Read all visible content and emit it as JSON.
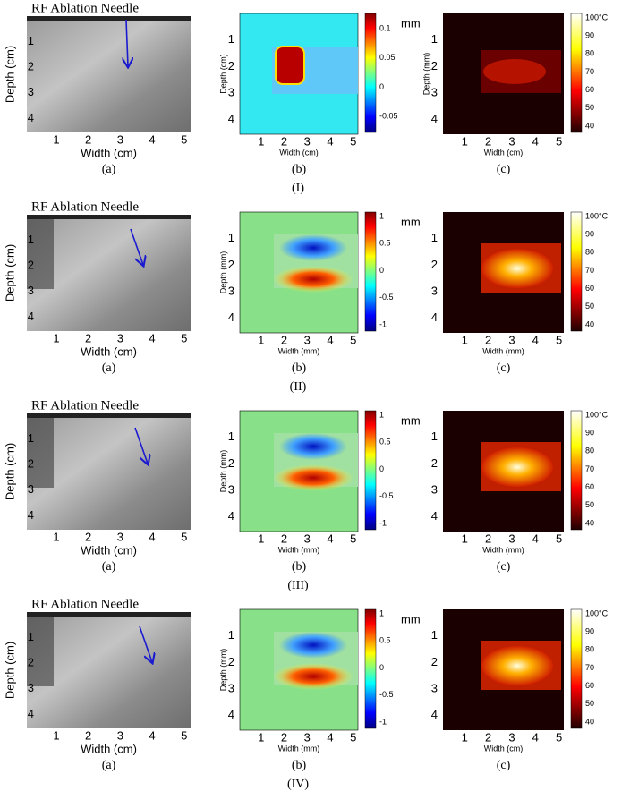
{
  "rows": [
    {
      "label": "(I)",
      "panels": [
        {
          "caption": "(a)",
          "title": "RF Ablation Needle",
          "xlabel": "Width (cm)",
          "ylabel": "Depth (cm)",
          "xticks": [
            "1",
            "2",
            "3",
            "4",
            "5"
          ],
          "yticks": [
            "1",
            "2",
            "3",
            "4"
          ]
        },
        {
          "caption": "(b)",
          "xlabel": "Width (cm)",
          "ylabel": "Depth (cm)",
          "xticks": [
            "1",
            "2",
            "3",
            "4",
            "5"
          ],
          "yticks": [
            "1",
            "2",
            "3",
            "4"
          ],
          "colorbar_ticks": [
            "0.1",
            "0.05",
            "0",
            "-0.05"
          ],
          "colorbar_unit": "mm"
        },
        {
          "caption": "(c)",
          "xlabel": "Width (cm)",
          "ylabel": "Depth (mm)",
          "xticks": [
            "1",
            "2",
            "3",
            "4",
            "5"
          ],
          "yticks": [
            "1",
            "2",
            "3",
            "4"
          ],
          "colorbar_ticks": [
            "100°C",
            "90",
            "80",
            "70",
            "60",
            "50",
            "40"
          ]
        }
      ]
    },
    {
      "label": "(II)",
      "panels": [
        {
          "caption": "(a)",
          "title": "RF Ablation Needle",
          "xlabel": "Width (cm)",
          "ylabel": "Depth (cm)",
          "xticks": [
            "1",
            "2",
            "3",
            "4",
            "5"
          ],
          "yticks": [
            "1",
            "2",
            "3",
            "4"
          ]
        },
        {
          "caption": "(b)",
          "xlabel": "Width (mm)",
          "ylabel": "Depth (mm)",
          "xticks": [
            "1",
            "2",
            "3",
            "4",
            "5"
          ],
          "yticks": [
            "1",
            "2",
            "3",
            "4"
          ],
          "colorbar_ticks": [
            "1",
            "0.5",
            "0",
            "-0.5",
            "-1"
          ],
          "colorbar_unit": "mm"
        },
        {
          "caption": "(c)",
          "xlabel": "Width (mm)",
          "xticks": [
            "1",
            "2",
            "3",
            "4",
            "5"
          ],
          "yticks": [
            "1",
            "2",
            "3",
            "4"
          ],
          "colorbar_ticks": [
            "100°C",
            "90",
            "80",
            "70",
            "60",
            "50",
            "40"
          ]
        }
      ]
    },
    {
      "label": "(III)",
      "panels": [
        {
          "caption": "(a)",
          "title": "RF Ablation Needle",
          "xlabel": "Width (cm)",
          "ylabel": "Depth (cm)",
          "xticks": [
            "1",
            "2",
            "3",
            "4",
            "5"
          ],
          "yticks": [
            "1",
            "2",
            "3",
            "4"
          ]
        },
        {
          "caption": "(b)",
          "xlabel": "Width (mm)",
          "ylabel": "Depth (mm)",
          "xticks": [
            "1",
            "2",
            "3",
            "4",
            "5"
          ],
          "yticks": [
            "1",
            "2",
            "3",
            "4"
          ],
          "colorbar_ticks": [
            "1",
            "0.5",
            "0",
            "-0.5",
            "-1"
          ],
          "colorbar_unit": "mm"
        },
        {
          "caption": "(c)",
          "xlabel": "Width (mm)",
          "xticks": [
            "1",
            "2",
            "3",
            "4",
            "5"
          ],
          "yticks": [
            "1",
            "2",
            "3",
            "4"
          ],
          "colorbar_ticks": [
            "100°C",
            "90",
            "80",
            "70",
            "60",
            "50",
            "40"
          ]
        }
      ]
    },
    {
      "label": "(IV)",
      "panels": [
        {
          "caption": "(a)",
          "title": "RF Ablation Needle",
          "xlabel": "Width (cm)",
          "ylabel": "Depth (cm)",
          "xticks": [
            "1",
            "2",
            "3",
            "4",
            "5"
          ],
          "yticks": [
            "1",
            "2",
            "3",
            "4"
          ]
        },
        {
          "caption": "(b)",
          "xlabel": "Width (mm)",
          "ylabel": "Depth (mm)",
          "xticks": [
            "1",
            "2",
            "3",
            "4",
            "5"
          ],
          "yticks": [
            "1",
            "2",
            "3",
            "4"
          ],
          "colorbar_ticks": [
            "1",
            "0.5",
            "0",
            "-0.5",
            "-1"
          ],
          "colorbar_unit": "mm"
        },
        {
          "caption": "(c)",
          "xlabel": "Width (cm)",
          "xticks": [
            "1",
            "2",
            "3",
            "4",
            "5"
          ],
          "yticks": [
            "1",
            "2",
            "3",
            "4"
          ],
          "colorbar_ticks": [
            "100°C",
            "90",
            "80",
            "70",
            "60",
            "50",
            "40"
          ]
        }
      ]
    }
  ]
}
